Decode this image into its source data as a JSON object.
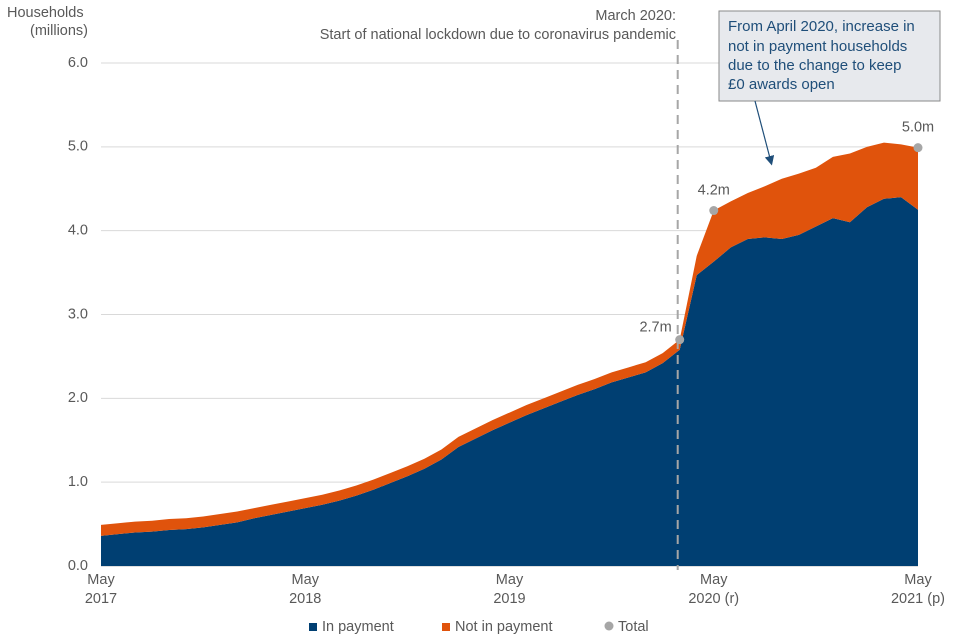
{
  "chart_data": {
    "type": "stacked-area",
    "y_title": [
      "Households",
      "(millions)"
    ],
    "categories": [
      [
        "May",
        "2017"
      ],
      null,
      null,
      null,
      null,
      null,
      null,
      null,
      null,
      null,
      null,
      null,
      [
        "May",
        "2018"
      ],
      null,
      null,
      null,
      null,
      null,
      null,
      null,
      null,
      null,
      null,
      null,
      [
        "May",
        "2019"
      ],
      null,
      null,
      null,
      null,
      null,
      null,
      null,
      null,
      null,
      null,
      null,
      [
        "May",
        "2020 (r)"
      ],
      null,
      null,
      null,
      null,
      null,
      null,
      null,
      null,
      null,
      null,
      null,
      [
        "May",
        "2021 (p)"
      ]
    ],
    "ylim": [
      0,
      6
    ],
    "yticks": [
      {
        "value": 0,
        "label": "0.0"
      },
      {
        "value": 1,
        "label": "1.0"
      },
      {
        "value": 2,
        "label": "2.0"
      },
      {
        "value": 3,
        "label": "3.0"
      },
      {
        "value": 4,
        "label": "4.0"
      },
      {
        "value": 5,
        "label": "5.0"
      },
      {
        "value": 6,
        "label": "6.0"
      }
    ],
    "grid": true,
    "series": [
      {
        "name": "In payment",
        "color": "#003f72",
        "values": [
          0.36,
          0.38,
          0.4,
          0.41,
          0.43,
          0.44,
          0.46,
          0.49,
          0.52,
          0.57,
          0.61,
          0.65,
          0.69,
          0.73,
          0.78,
          0.84,
          0.91,
          0.99,
          1.07,
          1.16,
          1.27,
          1.42,
          1.52,
          1.62,
          1.71,
          1.8,
          1.88,
          1.96,
          2.04,
          2.11,
          2.19,
          2.25,
          2.31,
          2.42,
          2.58,
          3.47,
          3.63,
          3.8,
          3.9,
          3.92,
          3.9,
          3.95,
          4.05,
          4.15,
          4.1,
          4.28,
          4.38,
          4.4,
          4.25
        ]
      },
      {
        "name": "Not in payment",
        "color": "#e0530c",
        "values": [
          0.13,
          0.13,
          0.13,
          0.13,
          0.13,
          0.13,
          0.13,
          0.13,
          0.13,
          0.12,
          0.12,
          0.12,
          0.12,
          0.12,
          0.12,
          0.12,
          0.12,
          0.12,
          0.12,
          0.12,
          0.12,
          0.12,
          0.12,
          0.12,
          0.12,
          0.12,
          0.12,
          0.12,
          0.12,
          0.12,
          0.12,
          0.12,
          0.12,
          0.12,
          0.12,
          0.23,
          0.61,
          0.55,
          0.55,
          0.61,
          0.72,
          0.73,
          0.7,
          0.73,
          0.82,
          0.72,
          0.67,
          0.63,
          0.74
        ]
      },
      {
        "name": "Total",
        "color": "#a6a6a6",
        "values": [
          null,
          null,
          null,
          null,
          null,
          null,
          null,
          null,
          null,
          null,
          null,
          null,
          null,
          null,
          null,
          null,
          null,
          null,
          null,
          null,
          null,
          null,
          null,
          null,
          null,
          null,
          null,
          null,
          null,
          null,
          null,
          null,
          null,
          null,
          2.7,
          null,
          4.24,
          null,
          null,
          null,
          null,
          null,
          null,
          null,
          null,
          null,
          null,
          null,
          4.99
        ],
        "value_labels": [
          null,
          null,
          null,
          null,
          null,
          null,
          null,
          null,
          null,
          null,
          null,
          null,
          null,
          null,
          null,
          null,
          null,
          null,
          null,
          null,
          null,
          null,
          null,
          null,
          null,
          null,
          null,
          null,
          null,
          null,
          null,
          null,
          null,
          null,
          "2.7m",
          null,
          "4.2m",
          null,
          null,
          null,
          null,
          null,
          null,
          null,
          null,
          null,
          null,
          null,
          "5.0m"
        ]
      }
    ],
    "annotations": [
      {
        "text": [
          "March 2020:",
          "Start of national lockdown due to coronavirus pandemic"
        ]
      },
      {
        "text": [
          "From April 2020, increase in",
          "not in payment households",
          "due to the change to keep",
          "£0 awards open"
        ]
      }
    ]
  }
}
